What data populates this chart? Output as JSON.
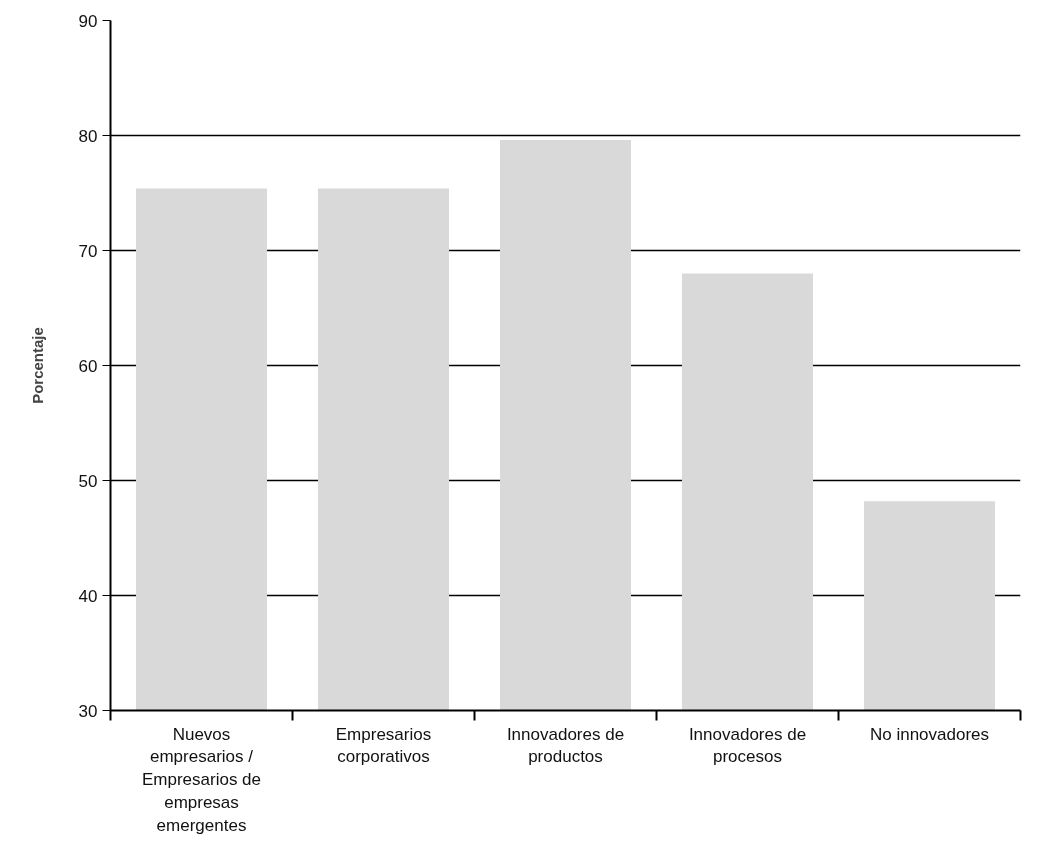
{
  "chart_data": {
    "type": "bar",
    "ylabel": "Porcentaje",
    "categories": [
      "Nuevos empresarios / Empresarios de empresas emergentes",
      "Empresarios corporativos",
      "Innovadores de productos",
      "Innovadores de procesos",
      "No innovadores"
    ],
    "values": [
      75.4,
      75.4,
      79.6,
      68.0,
      48.2
    ],
    "color": "#d9d9d9",
    "ylim": [
      30,
      90
    ],
    "yticks": [
      30,
      40,
      50,
      60,
      70,
      80,
      90
    ],
    "grid": "y"
  }
}
